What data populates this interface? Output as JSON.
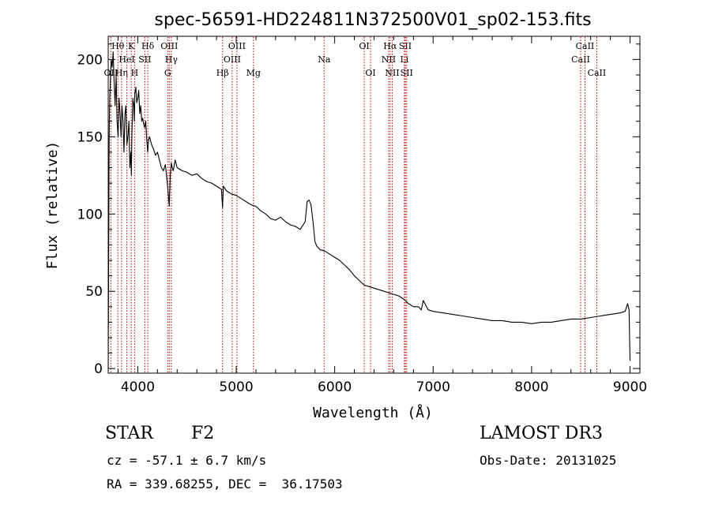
{
  "chart_data": {
    "type": "line",
    "title": "spec-56591-HD224811N372500V01_sp02-153.fits",
    "xlabel": "Wavelength (Å)",
    "ylabel": "Flux (relative)",
    "xlim": [
      3700,
      9100
    ],
    "ylim": [
      -3,
      215
    ],
    "x_ticks": [
      4000,
      5000,
      6000,
      7000,
      8000,
      9000
    ],
    "y_ticks": [
      0,
      50,
      100,
      150,
      200
    ],
    "x_minor_step": 200,
    "y_minor_step": 10,
    "series": [
      {
        "name": "spectrum",
        "x": [
          3700,
          3705,
          3710,
          3715,
          3722,
          3730,
          3740,
          3750,
          3760,
          3770,
          3780,
          3790,
          3800,
          3810,
          3820,
          3830,
          3840,
          3850,
          3860,
          3870,
          3880,
          3890,
          3900,
          3910,
          3920,
          3930,
          3935,
          3940,
          3950,
          3960,
          3965,
          3970,
          3980,
          3990,
          4000,
          4010,
          4020,
          4030,
          4040,
          4050,
          4060,
          4070,
          4080,
          4090,
          4100,
          4110,
          4120,
          4140,
          4160,
          4180,
          4200,
          4220,
          4240,
          4260,
          4280,
          4300,
          4320,
          4330,
          4340,
          4350,
          4360,
          4380,
          4400,
          4450,
          4500,
          4550,
          4600,
          4650,
          4700,
          4750,
          4800,
          4850,
          4861,
          4870,
          4900,
          4950,
          5000,
          5050,
          5100,
          5150,
          5200,
          5250,
          5300,
          5350,
          5400,
          5450,
          5500,
          5550,
          5600,
          5650,
          5700,
          5720,
          5740,
          5760,
          5780,
          5800,
          5820,
          5850,
          5900,
          5950,
          6000,
          6050,
          6100,
          6150,
          6200,
          6250,
          6300,
          6350,
          6400,
          6450,
          6500,
          6550,
          6600,
          6650,
          6700,
          6750,
          6800,
          6850,
          6880,
          6890,
          6900,
          6950,
          7000,
          7100,
          7200,
          7300,
          7400,
          7500,
          7600,
          7700,
          7800,
          7900,
          8000,
          8100,
          8200,
          8300,
          8400,
          8500,
          8600,
          8700,
          8800,
          8900,
          8950,
          8975,
          8990,
          9000
        ],
        "y": [
          0,
          80,
          150,
          175,
          185,
          200,
          195,
          205,
          185,
          170,
          190,
          160,
          150,
          175,
          165,
          150,
          170,
          160,
          140,
          165,
          170,
          145,
          150,
          160,
          130,
          140,
          125,
          150,
          175,
          170,
          160,
          178,
          182,
          172,
          175,
          180,
          165,
          170,
          160,
          162,
          158,
          156,
          160,
          150,
          140,
          148,
          150,
          145,
          142,
          138,
          140,
          135,
          130,
          128,
          132,
          120,
          105,
          125,
          133,
          130,
          128,
          135,
          130,
          128,
          127,
          125,
          126,
          123,
          121,
          120,
          118,
          116,
          104,
          118,
          115,
          113,
          112,
          110,
          108,
          106,
          105,
          102,
          100,
          97,
          96,
          98,
          95,
          93,
          92,
          90,
          95,
          108,
          109,
          106,
          95,
          82,
          79,
          77,
          76,
          74,
          72,
          70,
          67,
          64,
          60,
          57,
          54,
          53,
          52,
          51,
          50,
          49,
          48,
          47,
          45,
          42,
          40,
          40,
          38,
          41,
          44,
          38,
          37,
          36,
          35,
          34,
          33,
          32,
          31,
          31,
          30,
          30,
          29,
          30,
          30,
          31,
          32,
          32,
          33,
          34,
          35,
          36,
          37,
          42,
          38,
          5
        ]
      }
    ],
    "lines": [
      {
        "label": "OII",
        "x": 3727,
        "row": 3
      },
      {
        "label": "Hθ",
        "x": 3798,
        "row": 1
      },
      {
        "label": "Hη",
        "x": 3835,
        "row": 3
      },
      {
        "label": "HeI",
        "x": 3889,
        "row": 2
      },
      {
        "label": "K",
        "x": 3934,
        "row": 1
      },
      {
        "label": "H",
        "x": 3968,
        "row": 3
      },
      {
        "label": "SII",
        "x": 4072,
        "row": 2
      },
      {
        "label": "Hδ",
        "x": 4102,
        "row": 1
      },
      {
        "label": "G",
        "x": 4304,
        "row": 3
      },
      {
        "label": "OIII",
        "x": 4320,
        "row": 1
      },
      {
        "label": "Hγ",
        "x": 4341,
        "row": 2
      },
      {
        "label": "Hβ",
        "x": 4861,
        "row": 3
      },
      {
        "label": "OIII",
        "x": 4959,
        "row": 2
      },
      {
        "label": "OIII",
        "x": 5007,
        "row": 1
      },
      {
        "label": "Mg",
        "x": 5175,
        "row": 3
      },
      {
        "label": "Na",
        "x": 5893,
        "row": 2
      },
      {
        "label": "OI",
        "x": 6300,
        "row": 1
      },
      {
        "label": "OI",
        "x": 6364,
        "row": 3
      },
      {
        "label": "NII",
        "x": 6548,
        "row": 2
      },
      {
        "label": "Hα",
        "x": 6563,
        "row": 1
      },
      {
        "label": "NII",
        "x": 6584,
        "row": 3
      },
      {
        "label": "Li",
        "x": 6708,
        "row": 2
      },
      {
        "label": "SII",
        "x": 6717,
        "row": 1
      },
      {
        "label": "SII",
        "x": 6731,
        "row": 3
      },
      {
        "label": "CaII",
        "x": 8498,
        "row": 2
      },
      {
        "label": "CaII",
        "x": 8542,
        "row": 1
      },
      {
        "label": "CaII",
        "x": 8662,
        "row": 3
      }
    ]
  },
  "info": {
    "object_class": "STAR",
    "subclass": "F2",
    "survey": "LAMOST DR3",
    "cz": "cz = -57.1 ± 6.7 km/s",
    "obs_date": "Obs-Date: 20131025",
    "coords": "RA = 339.68255, DEC =  36.17503"
  },
  "colors": {
    "axes": "#000000",
    "spectrum": "#000000",
    "line_marker": "#c00000"
  }
}
